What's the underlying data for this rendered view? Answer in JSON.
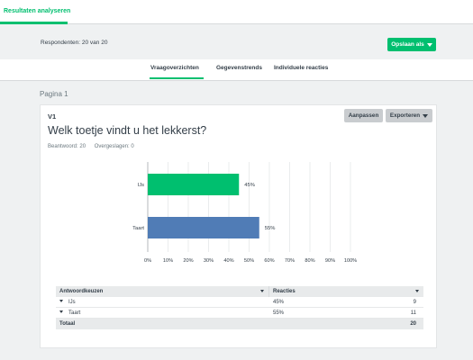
{
  "top_tab": {
    "label": "Resultaten analyseren"
  },
  "respondents": "Respondenten: 20 van 20",
  "save_button": {
    "label": "Opslaan als"
  },
  "subnav": [
    "Vraagoverzichten",
    "Gegevenstrends",
    "Individuele reacties"
  ],
  "page_label": "Pagina 1",
  "question": {
    "number": "V1",
    "title": "Welk toetje vindt u het lekkerst?",
    "answered": "Beantwoord: 20",
    "skipped": "Overgeslagen: 0",
    "adjust_label": "Aanpassen",
    "export_label": "Exporteren"
  },
  "chart_data": {
    "type": "bar",
    "orientation": "horizontal",
    "categories": [
      "IJs",
      "Taart"
    ],
    "values": [
      45,
      55
    ],
    "value_labels": [
      "45%",
      "55%"
    ],
    "xlim": [
      0,
      100
    ],
    "xticks": [
      "0%",
      "10%",
      "20%",
      "30%",
      "40%",
      "50%",
      "60%",
      "70%",
      "80%",
      "90%",
      "100%"
    ],
    "colors": [
      "#00bf6f",
      "#507cb6"
    ],
    "grid": true
  },
  "table": {
    "headers": [
      "Antwoordkeuzen",
      "Reacties"
    ],
    "rows": [
      {
        "label": "IJs",
        "percent": "45%",
        "count": "9"
      },
      {
        "label": "Taart",
        "percent": "55%",
        "count": "11"
      }
    ],
    "total_label": "Totaal",
    "total_count": "20"
  },
  "colors": {
    "accent": "#00bf6f",
    "bar_secondary": "#507cb6"
  }
}
